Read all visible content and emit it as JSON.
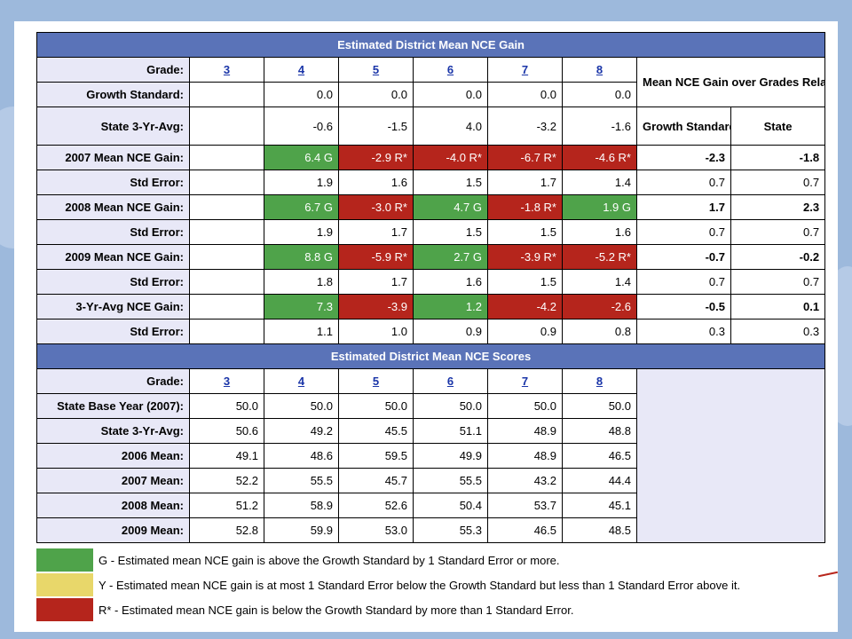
{
  "colors": {
    "section_header": "#5a73b8",
    "label_bg": "#e8e8f7",
    "green": "#4fa34a",
    "yellow": "#e8d76a",
    "red": "#b5251c",
    "link": "#1a35a8"
  },
  "gain": {
    "title": "Estimated District Mean NCE Gain",
    "grade_label": "Grade:",
    "grades": [
      "3",
      "4",
      "5",
      "6",
      "7",
      "8"
    ],
    "summary_title": "Mean NCE Gain over Grades Relative to",
    "summary_cols": [
      "Growth Standard",
      "State"
    ],
    "growth_standard": {
      "label": "Growth Standard:",
      "values": [
        "",
        "0.0",
        "0.0",
        "0.0",
        "0.0",
        "0.0"
      ]
    },
    "state_avg": {
      "label": "State 3-Yr-Avg:",
      "values": [
        "",
        "-0.6",
        "-1.5",
        "4.0",
        "-3.2",
        "-1.6"
      ]
    },
    "rows": [
      {
        "label": "2007 Mean NCE Gain:",
        "values": [
          "",
          "6.4 G",
          "-2.9 R*",
          "-4.0 R*",
          "-6.7 R*",
          "-4.6 R*"
        ],
        "ratings": [
          "",
          "G",
          "R",
          "R",
          "R",
          "R"
        ],
        "growth": "-2.3",
        "state": "-1.8",
        "se_label": "Std Error:",
        "se": [
          "",
          "1.9",
          "1.6",
          "1.5",
          "1.7",
          "1.4"
        ],
        "se_growth": "0.7",
        "se_state": "0.7"
      },
      {
        "label": "2008 Mean NCE Gain:",
        "values": [
          "",
          "6.7 G",
          "-3.0 R*",
          "4.7 G",
          "-1.8 R*",
          "1.9 G"
        ],
        "ratings": [
          "",
          "G",
          "R",
          "G",
          "R",
          "G"
        ],
        "growth": "1.7",
        "state": "2.3",
        "se_label": "Std Error:",
        "se": [
          "",
          "1.9",
          "1.7",
          "1.5",
          "1.5",
          "1.6"
        ],
        "se_growth": "0.7",
        "se_state": "0.7"
      },
      {
        "label": "2009 Mean NCE Gain:",
        "values": [
          "",
          "8.8 G",
          "-5.9 R*",
          "2.7 G",
          "-3.9 R*",
          "-5.2 R*"
        ],
        "ratings": [
          "",
          "G",
          "R",
          "G",
          "R",
          "R"
        ],
        "growth": "-0.7",
        "state": "-0.2",
        "se_label": "Std Error:",
        "se": [
          "",
          "1.8",
          "1.7",
          "1.6",
          "1.5",
          "1.4"
        ],
        "se_growth": "0.7",
        "se_state": "0.7"
      },
      {
        "label": "3-Yr-Avg NCE Gain:",
        "values": [
          "",
          "7.3",
          "-3.9",
          "1.2",
          "-4.2",
          "-2.6"
        ],
        "ratings": [
          "",
          "G",
          "R",
          "G",
          "R",
          "R"
        ],
        "growth": "-0.5",
        "state": "0.1",
        "se_label": "Std Error:",
        "se": [
          "",
          "1.1",
          "1.0",
          "0.9",
          "0.9",
          "0.8"
        ],
        "se_growth": "0.3",
        "se_state": "0.3"
      }
    ]
  },
  "scores": {
    "title": "Estimated District Mean NCE Scores",
    "grade_label": "Grade:",
    "grades": [
      "3",
      "4",
      "5",
      "6",
      "7",
      "8"
    ],
    "rows": [
      {
        "label": "State Base Year (2007):",
        "values": [
          "50.0",
          "50.0",
          "50.0",
          "50.0",
          "50.0",
          "50.0"
        ]
      },
      {
        "label": "State 3-Yr-Avg:",
        "values": [
          "50.6",
          "49.2",
          "45.5",
          "51.1",
          "48.9",
          "48.8"
        ]
      },
      {
        "label": "2006 Mean:",
        "values": [
          "49.1",
          "48.6",
          "59.5",
          "49.9",
          "48.9",
          "46.5"
        ]
      },
      {
        "label": "2007 Mean:",
        "values": [
          "52.2",
          "55.5",
          "45.7",
          "55.5",
          "43.2",
          "44.4"
        ]
      },
      {
        "label": "2008 Mean:",
        "values": [
          "51.2",
          "58.9",
          "52.6",
          "50.4",
          "53.7",
          "45.1"
        ]
      },
      {
        "label": "2009 Mean:",
        "values": [
          "52.8",
          "59.9",
          "53.0",
          "55.3",
          "46.5",
          "48.5"
        ]
      }
    ]
  },
  "legend": [
    {
      "key": "G",
      "text": "G - Estimated mean NCE gain is above the Growth Standard by 1 Standard Error or more."
    },
    {
      "key": "Y",
      "text": "Y - Estimated mean NCE gain is at most 1 Standard Error below the Growth Standard but less than 1 Standard Error above it."
    },
    {
      "key": "R",
      "text": "R* - Estimated mean NCE gain is below the Growth Standard by more than 1 Standard Error."
    }
  ]
}
